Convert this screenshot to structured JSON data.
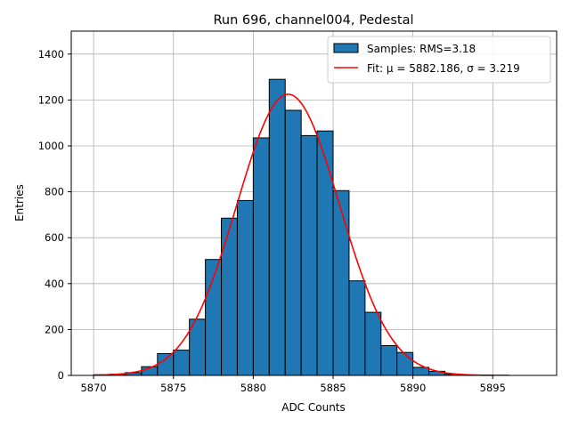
{
  "chart_data": {
    "type": "bar",
    "title": "Run 696, channel004, Pedestal",
    "xlabel": "ADC Counts",
    "ylabel": "Entries",
    "xlim": [
      5868.6,
      5899.0
    ],
    "ylim": [
      0,
      1500
    ],
    "x_ticks": [
      5870,
      5875,
      5880,
      5885,
      5890,
      5895
    ],
    "y_ticks": [
      0,
      200,
      400,
      600,
      800,
      1000,
      1200,
      1400
    ],
    "grid": true,
    "legend_position": "top-right",
    "series": [
      {
        "name": "Samples: RMS=3.18",
        "kind": "histogram",
        "color": "#1f77b4",
        "edgecolor": "#000000",
        "bin_width": 1,
        "x": [
          5870,
          5871,
          5872,
          5873,
          5874,
          5875,
          5876,
          5877,
          5878,
          5879,
          5880,
          5881,
          5882,
          5883,
          5884,
          5885,
          5886,
          5887,
          5888,
          5889,
          5890,
          5891,
          5892,
          5893,
          5894,
          5895,
          5896,
          5897
        ],
        "values": [
          3,
          5,
          12,
          38,
          95,
          110,
          245,
          505,
          685,
          762,
          1035,
          1290,
          1155,
          1045,
          1065,
          805,
          412,
          275,
          130,
          100,
          35,
          18,
          5,
          2,
          1,
          1,
          0,
          0
        ]
      },
      {
        "name": "Fit: μ = 5882.186, σ = 3.219",
        "kind": "gaussian_fit",
        "color": "#ff0000",
        "mu": 5882.186,
        "sigma": 3.219,
        "amplitude": 1225,
        "x_range": [
          5870,
          5895
        ]
      }
    ]
  }
}
